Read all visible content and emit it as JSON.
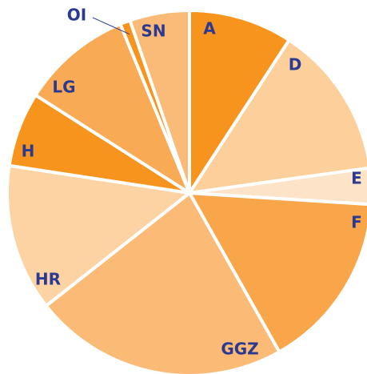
{
  "chart_data": {
    "type": "pie",
    "categories": [
      "A",
      "D",
      "E",
      "F",
      "GGZ",
      "HR",
      "H",
      "LG",
      "OI",
      "SN"
    ],
    "values": [
      9.2,
      13.6,
      3.2,
      15.8,
      22.6,
      13.0,
      6.6,
      9.8,
      0.9,
      5.3
    ],
    "colors": [
      "#f7941d",
      "#fdd09b",
      "#fde3c8",
      "#f9a54a",
      "#fbbb76",
      "#fdd3a4",
      "#f7941d",
      "#f9aa55",
      "#f7941d",
      "#fbbb78"
    ],
    "start_angle": 0,
    "direction": "clockwise"
  }
}
